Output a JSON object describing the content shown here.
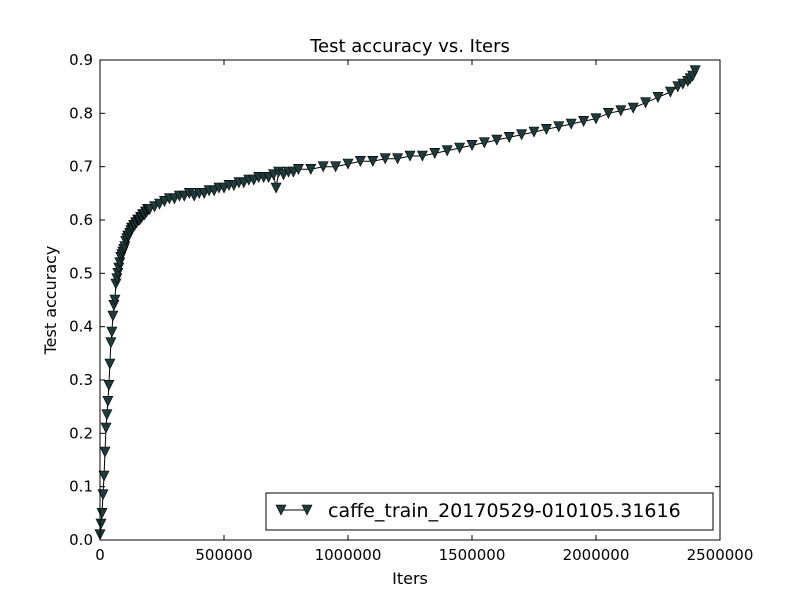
{
  "chart_data": {
    "type": "line",
    "title": "Test accuracy  vs. Iters",
    "xlabel": "Iters",
    "ylabel": "Test accuracy",
    "xlim": [
      0,
      2500000
    ],
    "ylim": [
      0.0,
      0.9
    ],
    "x_ticks": [
      0,
      500000,
      1000000,
      1500000,
      2000000,
      2500000
    ],
    "x_tick_labels": [
      "0",
      "500000",
      "1000000",
      "1500000",
      "2000000",
      "2500000"
    ],
    "y_ticks": [
      0.0,
      0.1,
      0.2,
      0.3,
      0.4,
      0.5,
      0.6,
      0.7,
      0.8,
      0.9
    ],
    "y_tick_labels": [
      "0.0",
      "0.1",
      "0.2",
      "0.3",
      "0.4",
      "0.5",
      "0.6",
      "0.7",
      "0.8",
      "0.9"
    ],
    "grid": false,
    "legend_position": "bottom-right",
    "marker": "triangle-down",
    "line_color": "#000000",
    "marker_color": "#1f3a3a",
    "series": [
      {
        "name": "caffe_train_20170529-010105.31616",
        "x": [
          0,
          4000,
          8000,
          12000,
          16000,
          20000,
          24000,
          28000,
          32000,
          36000,
          40000,
          44000,
          48000,
          52000,
          56000,
          60000,
          64000,
          68000,
          72000,
          76000,
          80000,
          84000,
          88000,
          92000,
          96000,
          100000,
          104000,
          108000,
          112000,
          116000,
          120000,
          124000,
          128000,
          132000,
          136000,
          140000,
          144000,
          148000,
          152000,
          156000,
          160000,
          164000,
          168000,
          172000,
          176000,
          180000,
          184000,
          188000,
          192000,
          196000,
          200000,
          220000,
          240000,
          260000,
          280000,
          300000,
          320000,
          340000,
          360000,
          380000,
          400000,
          420000,
          440000,
          460000,
          480000,
          500000,
          520000,
          540000,
          560000,
          580000,
          600000,
          620000,
          640000,
          660000,
          680000,
          700000,
          710000,
          720000,
          740000,
          760000,
          780000,
          800000,
          850000,
          900000,
          950000,
          1000000,
          1050000,
          1100000,
          1150000,
          1200000,
          1250000,
          1300000,
          1350000,
          1400000,
          1450000,
          1500000,
          1550000,
          1600000,
          1650000,
          1700000,
          1750000,
          1800000,
          1850000,
          1900000,
          1950000,
          2000000,
          2050000,
          2100000,
          2150000,
          2200000,
          2250000,
          2300000,
          2330000,
          2350000,
          2370000,
          2380000,
          2390000,
          2400000
        ],
        "values": [
          0.01,
          0.03,
          0.05,
          0.085,
          0.12,
          0.165,
          0.21,
          0.235,
          0.26,
          0.29,
          0.33,
          0.37,
          0.39,
          0.42,
          0.44,
          0.45,
          0.48,
          0.49,
          0.5,
          0.51,
          0.52,
          0.53,
          0.535,
          0.54,
          0.545,
          0.55,
          0.56,
          0.565,
          0.57,
          0.57,
          0.575,
          0.58,
          0.585,
          0.585,
          0.59,
          0.59,
          0.595,
          0.595,
          0.6,
          0.6,
          0.6,
          0.605,
          0.605,
          0.61,
          0.61,
          0.61,
          0.615,
          0.615,
          0.62,
          0.62,
          0.62,
          0.625,
          0.63,
          0.635,
          0.64,
          0.64,
          0.645,
          0.645,
          0.65,
          0.645,
          0.65,
          0.65,
          0.655,
          0.655,
          0.66,
          0.66,
          0.665,
          0.665,
          0.67,
          0.67,
          0.675,
          0.675,
          0.68,
          0.68,
          0.68,
          0.685,
          0.66,
          0.69,
          0.685,
          0.69,
          0.69,
          0.695,
          0.695,
          0.7,
          0.7,
          0.705,
          0.71,
          0.71,
          0.715,
          0.715,
          0.72,
          0.72,
          0.725,
          0.73,
          0.735,
          0.74,
          0.745,
          0.75,
          0.755,
          0.76,
          0.765,
          0.77,
          0.775,
          0.78,
          0.785,
          0.79,
          0.8,
          0.805,
          0.81,
          0.82,
          0.83,
          0.84,
          0.85,
          0.855,
          0.86,
          0.865,
          0.87,
          0.88
        ]
      }
    ]
  }
}
